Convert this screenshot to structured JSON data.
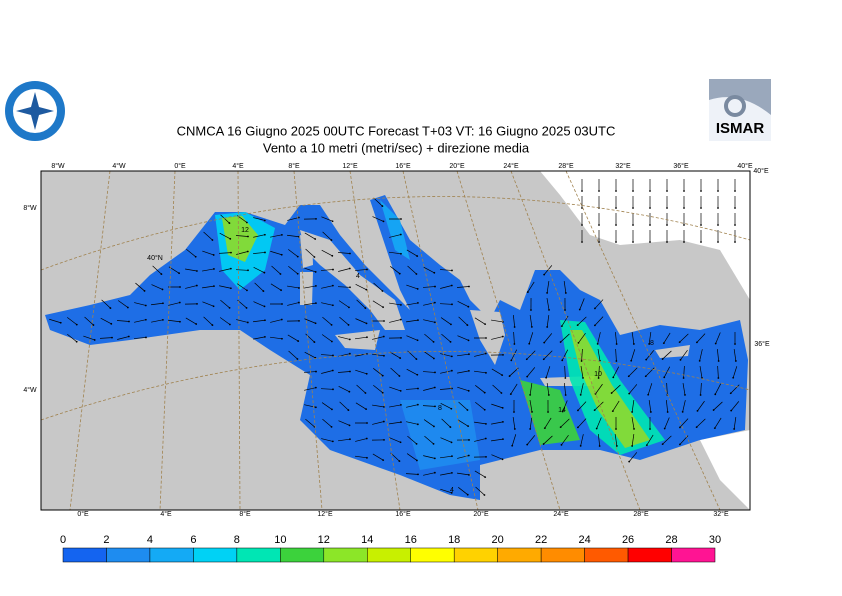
{
  "header": {
    "title_line1": "CNMCA 16   Giugno  2025 00UTC Forecast T+03 VT: 16   Giugno  2025 03UTC",
    "title_line2": "Vento a 10 metri (metri/sec) + direzione media"
  },
  "logos": {
    "right": "ISMAR"
  },
  "map": {
    "top_labels": [
      "8°W",
      "4°W",
      "0°E",
      "4°E",
      "8°E",
      "12°E",
      "16°E",
      "20°E",
      "24°E",
      "28°E",
      "32°E",
      "36°E",
      "40°E"
    ],
    "left_labels": [
      "8°W",
      "40°N",
      "4°W"
    ],
    "right_labels": [
      "40°E",
      "36°E"
    ],
    "bottom_labels": [
      "0°E",
      "4°E",
      "8°E",
      "12°E",
      "16°E",
      "20°E",
      "24°E",
      "28°E",
      "32°E"
    ],
    "contour_labels": [
      "12",
      "4",
      "8",
      "10",
      "14",
      "8",
      "4"
    ]
  },
  "colorbar": {
    "ticks": [
      0,
      2,
      4,
      6,
      8,
      10,
      12,
      14,
      16,
      18,
      20,
      22,
      24,
      26,
      28,
      30
    ],
    "colors": [
      "#1464f0",
      "#1e8cf0",
      "#14aaf5",
      "#00d2f5",
      "#00e6b4",
      "#3cd23c",
      "#8ce628",
      "#c8f000",
      "#ffff00",
      "#ffd200",
      "#ffaa00",
      "#ff8c00",
      "#ff5a00",
      "#ff0000",
      "#ff1493"
    ]
  }
}
